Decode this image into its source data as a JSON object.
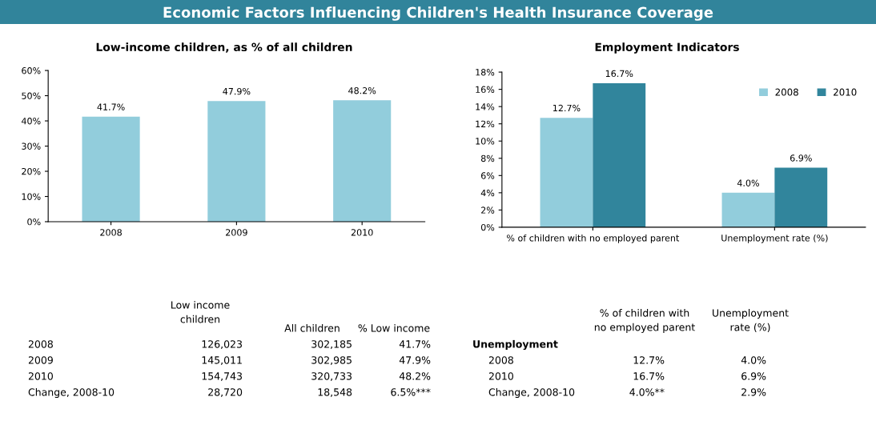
{
  "chart_data": [
    {
      "type": "other",
      "title": "Economic Factors Influencing Children's Health Insurance Coverage"
    },
    {
      "type": "bar",
      "title": "Low-income children, as % of all children",
      "categories": [
        "2008",
        "2009",
        "2010"
      ],
      "values": [
        41.7,
        47.9,
        48.2
      ],
      "value_labels": [
        "41.7%",
        "47.9%",
        "48.2%"
      ],
      "color": "#92cddc",
      "ylim": [
        0,
        60
      ],
      "yticks": [
        {
          "value": 0,
          "label": "0%"
        },
        {
          "value": 10,
          "label": "10%"
        },
        {
          "value": 20,
          "label": "20%"
        },
        {
          "value": 30,
          "label": "30%"
        },
        {
          "value": 40,
          "label": "40%"
        },
        {
          "value": 50,
          "label": "50%"
        },
        {
          "value": 60,
          "label": "60%"
        }
      ],
      "grid": false,
      "legend": false,
      "annotations": [
        "Low income\nchildren",
        "All children",
        "% Low income",
        "2008",
        "126,023",
        "302,185",
        "41.7%",
        "2009",
        "145,011",
        "302,985",
        "47.9%",
        "2010",
        "154,743",
        "320,733",
        "48.2%",
        "Change, 2008-10",
        "28,720",
        "18,548",
        "6.5%***"
      ]
    },
    {
      "type": "bar",
      "title": "Employment Indicators",
      "categories": [
        "% of children with no employed parent",
        "Unemployment rate (%)"
      ],
      "series": [
        {
          "name": "2008",
          "color": "#92cddc",
          "values": [
            12.7,
            4.0
          ],
          "value_labels": [
            "12.7%",
            "4.0%"
          ]
        },
        {
          "name": "2010",
          "color": "#31859c",
          "values": [
            16.7,
            6.9
          ],
          "value_labels": [
            "16.7%",
            "6.9%"
          ]
        }
      ],
      "ylim": [
        0,
        18
      ],
      "yticks": [
        {
          "value": 0,
          "label": "0%"
        },
        {
          "value": 2,
          "label": "2%"
        },
        {
          "value": 4,
          "label": "4%"
        },
        {
          "value": 6,
          "label": "6%"
        },
        {
          "value": 8,
          "label": "8%"
        },
        {
          "value": 10,
          "label": "10%"
        },
        {
          "value": 12,
          "label": "12%"
        },
        {
          "value": 14,
          "label": "14%"
        },
        {
          "value": 16,
          "label": "16%"
        },
        {
          "value": 18,
          "label": "18%"
        }
      ],
      "grid": false,
      "legend": "top right",
      "annotations": [
        "% of children with\nno employed parent",
        "Unemployment\nrate (%)",
        "Unemployment",
        "2008",
        "12.7%",
        "4.0%",
        "2010",
        "16.7%",
        "6.9%",
        "Change, 2008-10",
        "4.0%**",
        "2.9%"
      ]
    }
  ]
}
